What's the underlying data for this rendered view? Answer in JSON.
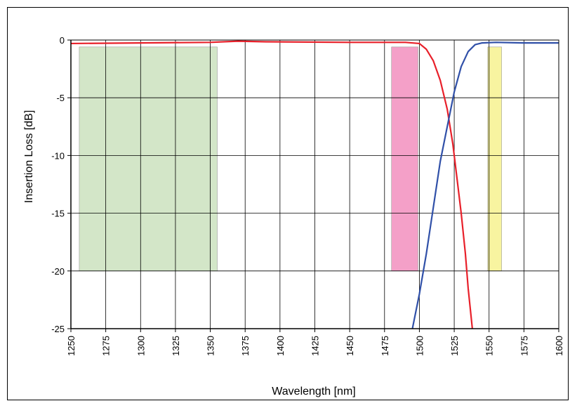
{
  "chart_data": {
    "type": "line",
    "title": "",
    "xlabel": "Wavelength [nm]",
    "ylabel": "Insertion Loss [dB]",
    "xlim": [
      1250,
      1600
    ],
    "ylim": [
      -25,
      0
    ],
    "x_ticks": [
      "1250",
      "1275",
      "1300",
      "1325",
      "1350",
      "1375",
      "1400",
      "1425",
      "1450",
      "1475",
      "1500",
      "1525",
      "1550",
      "1575",
      "1600"
    ],
    "y_ticks": [
      "0",
      "-5",
      "-10",
      "-15",
      "-20",
      "-25"
    ],
    "grid": true,
    "legend": "none",
    "series": [
      {
        "color": "#e8202a",
        "x": [
          1250,
          1300,
          1350,
          1370,
          1390,
          1450,
          1490,
          1500,
          1505,
          1510,
          1515,
          1520,
          1524,
          1527,
          1530,
          1533,
          1535,
          1538
        ],
        "y": [
          -0.3,
          -0.25,
          -0.2,
          -0.1,
          -0.15,
          -0.2,
          -0.2,
          -0.3,
          -0.8,
          -1.8,
          -3.5,
          -6,
          -9,
          -12,
          -15,
          -18.5,
          -21.5,
          -25
        ]
      },
      {
        "color": "#3050a8",
        "x": [
          1495,
          1500,
          1505,
          1510,
          1515,
          1520,
          1525,
          1530,
          1535,
          1540,
          1545,
          1555,
          1575,
          1600
        ],
        "y": [
          -25,
          -22,
          -18.5,
          -14.5,
          -10.5,
          -7.5,
          -4.5,
          -2.3,
          -1,
          -0.4,
          -0.25,
          -0.2,
          -0.25,
          -0.25
        ]
      }
    ],
    "bands": [
      {
        "x0": 1256,
        "x1": 1355,
        "y0": -20,
        "y1": -0.6,
        "color": "#d3e6c8"
      },
      {
        "x0": 1480,
        "x1": 1499,
        "y0": -20,
        "y1": -0.6,
        "color": "#f4a0c8"
      },
      {
        "x0": 1549,
        "x1": 1559,
        "y0": -20,
        "y1": -0.6,
        "color": "#f8f4a0"
      }
    ]
  }
}
